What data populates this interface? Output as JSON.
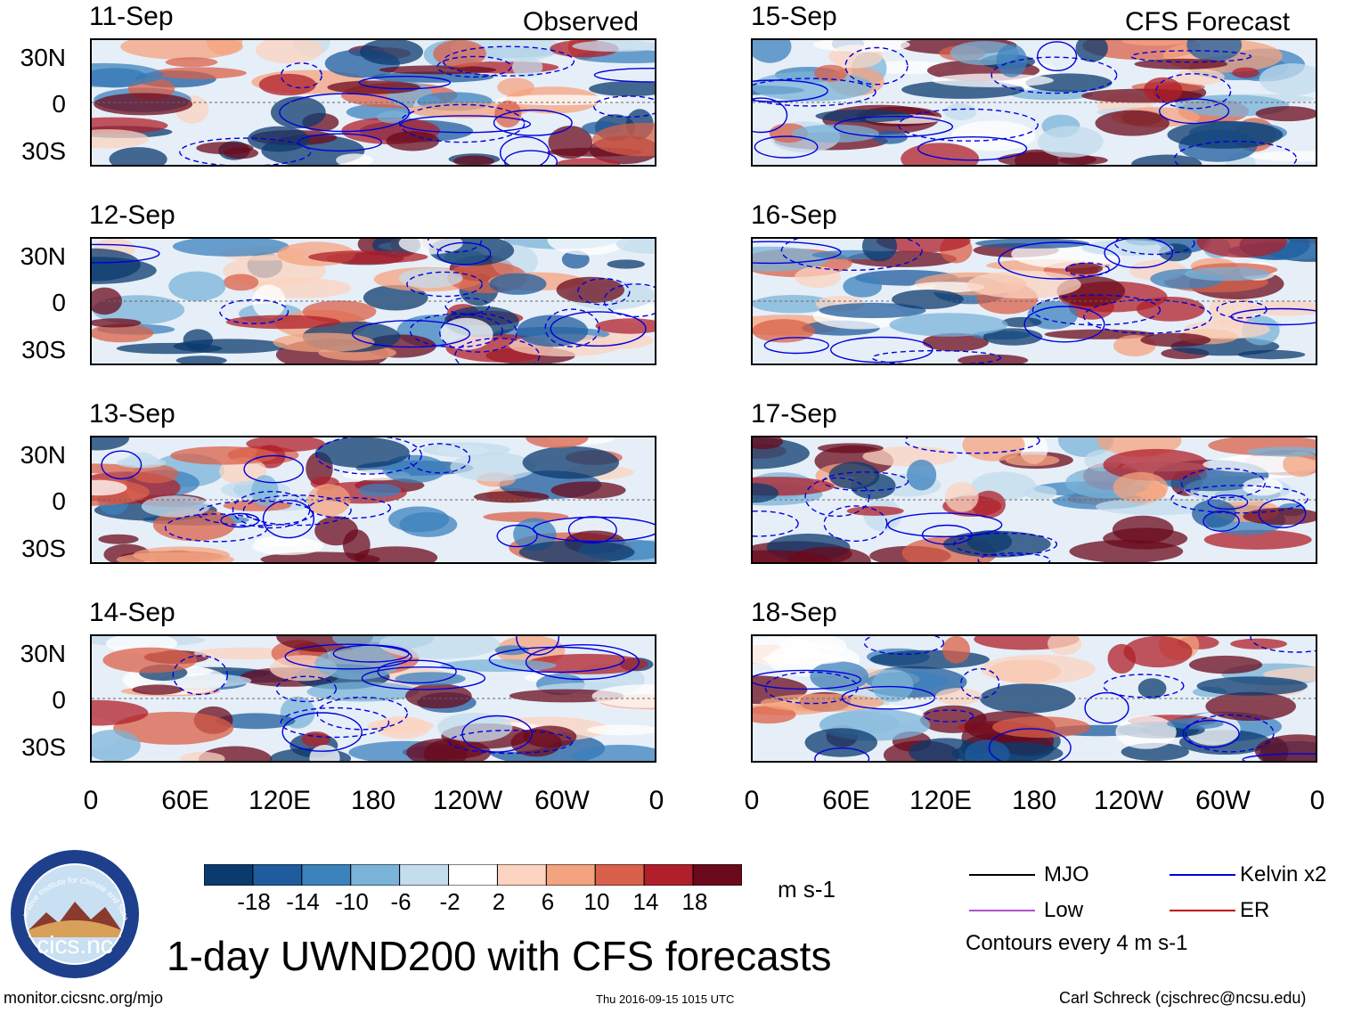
{
  "headers": {
    "observed": "Observed",
    "forecast": "CFS Forecast"
  },
  "observed_dates": [
    "11-Sep",
    "12-Sep",
    "13-Sep",
    "14-Sep"
  ],
  "forecast_dates": [
    "15-Sep",
    "16-Sep",
    "17-Sep",
    "18-Sep"
  ],
  "lat_labels": [
    "30N",
    "0",
    "30S"
  ],
  "lon_labels": [
    "0",
    "60E",
    "120E",
    "180",
    "120W",
    "60W",
    "0"
  ],
  "colorbar": {
    "ticks": [
      "-18",
      "-14",
      "-10",
      "-6",
      "-2",
      "2",
      "6",
      "10",
      "14",
      "18"
    ],
    "units": "m s-1",
    "colors": [
      "#0b3a6e",
      "#1f5c9e",
      "#3c82bd",
      "#7ab3d8",
      "#c3dcee",
      "#ffffff",
      "#fbd3c0",
      "#f4a37f",
      "#d9604a",
      "#b01f2a",
      "#6a0a1c"
    ]
  },
  "legend": {
    "mjo": "MJO",
    "kelvin": "Kelvin x2",
    "low": "Low",
    "er": "ER",
    "contours": "Contours every 4 m s-1",
    "colors": {
      "mjo": "#000000",
      "kelvin": "#0000dd",
      "low": "#b050d0",
      "er": "#c00000"
    }
  },
  "logo_text": "cics.nc",
  "logo_ring_text": "Cooperative Institute for Climate and Satellites",
  "title": "1-day UWND200 with CFS forecasts",
  "footer": {
    "left": "monitor.cicsnc.org/mjo",
    "center": "Thu 2016-09-15 1015 UTC",
    "right": "Carl Schreck (cjschrec@ncsu.edu)"
  }
}
